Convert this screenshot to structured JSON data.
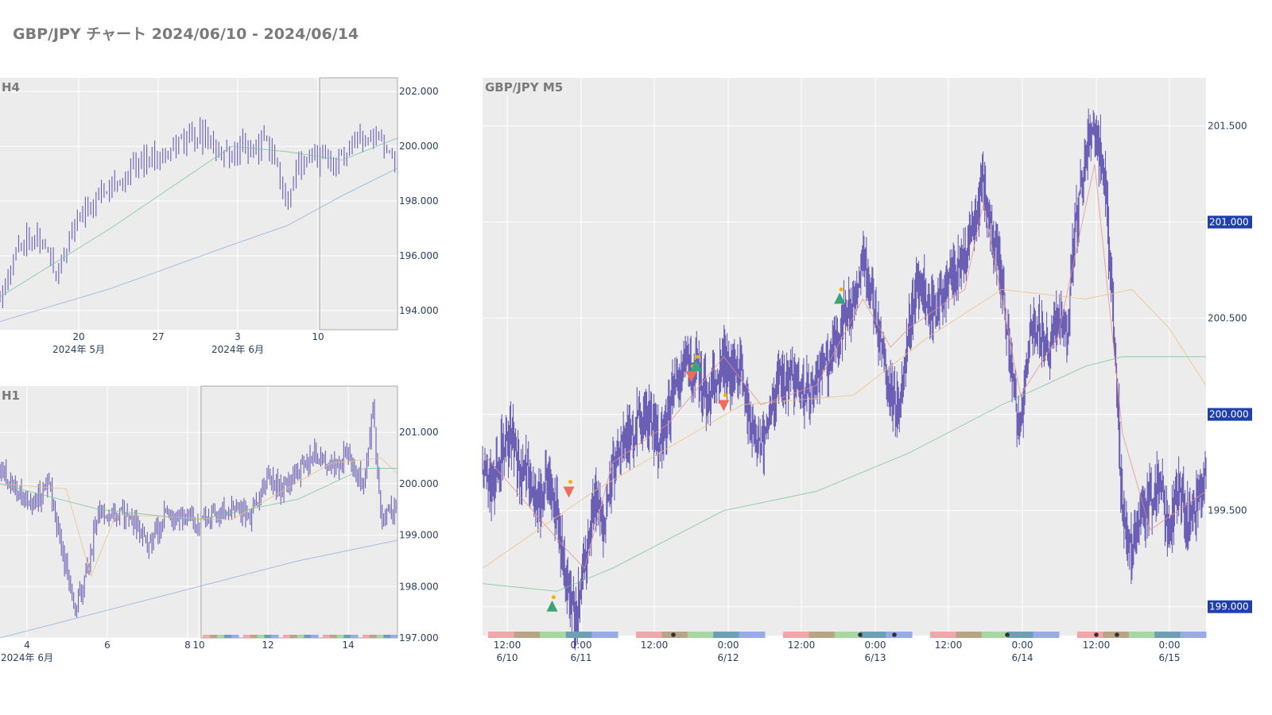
{
  "title": "GBP/JPY チャート 2024/06/10 - 2024/06/14",
  "colors": {
    "price": "#6a5fb5",
    "ma_short": "#e8908a",
    "ma_mid": "#f0c080",
    "ma_long": "#7cc49c",
    "ma_very_long": "#8fb0dc",
    "signal_up": "#3aa37a",
    "signal_down": "#ef6c5a",
    "signal_dot": "#f5b300",
    "price_badge": "#1f3fae",
    "session_bands": [
      "#f2a6aa",
      "#b8a487",
      "#a7d7a3",
      "#6f9fb5",
      "#97abe6"
    ]
  },
  "chart_data": [
    {
      "panel": "H4",
      "type": "candlestick",
      "label": "H4",
      "y_ticks": [
        "202.000",
        "200.000",
        "198.000",
        "196.000",
        "194.000"
      ],
      "ylim": [
        193.3,
        202.5
      ],
      "x_ticks": [
        {
          "label": "20",
          "sub": "2024年 5月"
        },
        {
          "label": "27",
          "sub": ""
        },
        {
          "label": "3",
          "sub": "2024年 6月"
        },
        {
          "label": "10",
          "sub": ""
        }
      ],
      "price_path": [
        [
          "05-10",
          194.6
        ],
        [
          "05-11",
          195.6
        ],
        [
          "05-12",
          196.6
        ],
        [
          "05-13",
          196.9
        ],
        [
          "05-14",
          196.3
        ],
        [
          "05-15",
          195.4
        ],
        [
          "05-16",
          196.4
        ],
        [
          "05-17",
          197.2
        ],
        [
          "05-18",
          197.8
        ],
        [
          "05-19",
          198.2
        ],
        [
          "05-20",
          198.8
        ],
        [
          "05-21",
          198.6
        ],
        [
          "05-22",
          199.3
        ],
        [
          "05-23",
          199.5
        ],
        [
          "05-24",
          199.7
        ],
        [
          "05-25",
          199.9
        ],
        [
          "05-26",
          200.1
        ],
        [
          "05-27",
          200.3
        ],
        [
          "05-28",
          200.5
        ],
        [
          "05-29",
          200.2
        ],
        [
          "05-30",
          199.6
        ],
        [
          "05-31",
          199.8
        ],
        [
          "06-01",
          200.1
        ],
        [
          "06-02",
          199.8
        ],
        [
          "06-03",
          200.3
        ],
        [
          "06-04",
          199.4
        ],
        [
          "06-05",
          197.8
        ],
        [
          "06-06",
          199.3
        ],
        [
          "06-07",
          199.7
        ],
        [
          "06-08",
          199.5
        ],
        [
          "06-09",
          199.3
        ],
        [
          "06-10",
          199.6
        ],
        [
          "06-11",
          200.1
        ],
        [
          "06-12",
          200.3
        ],
        [
          "06-13",
          200.7
        ],
        [
          "06-14",
          199.9
        ],
        [
          "06-15",
          199.5
        ]
      ],
      "ma_mid": [
        [
          "05-10",
          194.5
        ],
        [
          "05-20",
          197.0
        ],
        [
          "05-31",
          200.0
        ],
        [
          "06-05",
          199.8
        ],
        [
          "06-10",
          199.5
        ],
        [
          "06-15",
          200.3
        ]
      ],
      "ma_long": [
        [
          "05-10",
          193.6
        ],
        [
          "05-20",
          194.8
        ],
        [
          "05-31",
          196.4
        ],
        [
          "06-05",
          197.1
        ],
        [
          "06-10",
          198.2
        ],
        [
          "06-15",
          199.2
        ]
      ]
    },
    {
      "panel": "H1",
      "type": "candlestick",
      "label": "H1",
      "y_ticks": [
        "201.000",
        "200.000",
        "199.000",
        "198.000",
        "197.000"
      ],
      "ylim": [
        197.0,
        201.9
      ],
      "x_ticks": [
        {
          "label": "4",
          "sub": "2024年 6月"
        },
        {
          "label": "6",
          "sub": ""
        },
        {
          "label": "8",
          "sub": ""
        },
        {
          "label": "10",
          "sub": ""
        },
        {
          "label": "12",
          "sub": ""
        },
        {
          "label": "14",
          "sub": ""
        }
      ],
      "price_path": [
        [
          "06-03 00",
          200.3
        ],
        [
          "06-03 12",
          199.9
        ],
        [
          "06-04 00",
          199.6
        ],
        [
          "06-04 12",
          200.0
        ],
        [
          "06-05 00",
          198.3
        ],
        [
          "06-05 06",
          197.6
        ],
        [
          "06-05 12",
          197.9
        ],
        [
          "06-05 18",
          198.7
        ],
        [
          "06-06 00",
          199.5
        ],
        [
          "06-06 12",
          199.4
        ],
        [
          "06-07 00",
          199.3
        ],
        [
          "06-07 12",
          198.8
        ],
        [
          "06-08 00",
          199.4
        ],
        [
          "06-09 00",
          199.3
        ],
        [
          "06-10 00",
          199.5
        ],
        [
          "06-10 12",
          199.3
        ],
        [
          "06-11 00",
          200.1
        ],
        [
          "06-11 12",
          199.9
        ],
        [
          "06-12 00",
          200.2
        ],
        [
          "06-12 12",
          200.6
        ],
        [
          "06-13 00",
          200.3
        ],
        [
          "06-13 12",
          200.6
        ],
        [
          "06-14 00",
          199.9
        ],
        [
          "06-14 06",
          201.5
        ],
        [
          "06-14 12",
          199.2
        ],
        [
          "06-14 18",
          199.5
        ],
        [
          "06-15 00",
          199.6
        ]
      ],
      "ma_mid": [
        [
          "06-03 00",
          200.0
        ],
        [
          "06-05 00",
          199.9
        ],
        [
          "06-05 18",
          198.2
        ],
        [
          "06-06 12",
          199.4
        ],
        [
          "06-10 00",
          199.3
        ],
        [
          "06-13 00",
          200.4
        ],
        [
          "06-14 12",
          200.5
        ],
        [
          "06-15 00",
          200.2
        ]
      ],
      "ma_long": [
        [
          "06-03 00",
          200.0
        ],
        [
          "06-06 00",
          199.5
        ],
        [
          "06-09 00",
          199.3
        ],
        [
          "06-12 00",
          199.7
        ],
        [
          "06-14 00",
          200.3
        ],
        [
          "06-15 00",
          200.3
        ]
      ],
      "ma_very_long": [
        [
          "06-03 00",
          197.0
        ],
        [
          "06-06 00",
          197.5
        ],
        [
          "06-09 00",
          198.0
        ],
        [
          "06-12 00",
          198.5
        ],
        [
          "06-15 00",
          198.9
        ]
      ]
    },
    {
      "panel": "M5",
      "type": "candlestick",
      "label": "GBP/JPY M5",
      "y_ticks": [
        "201.500",
        "201.000",
        "200.500",
        "200.000",
        "199.500",
        "199.000"
      ],
      "price_markers": [
        "201.000",
        "200.000",
        "199.000"
      ],
      "ylim": [
        198.85,
        201.75
      ],
      "x_ticks": [
        {
          "label": "12:00",
          "sub": "6/10"
        },
        {
          "label": "0:00",
          "sub": "6/11"
        },
        {
          "label": "12:00",
          "sub": ""
        },
        {
          "label": "0:00",
          "sub": "6/12"
        },
        {
          "label": "12:00",
          "sub": ""
        },
        {
          "label": "0:00",
          "sub": "6/13"
        },
        {
          "label": "12:00",
          "sub": ""
        },
        {
          "label": "0:00",
          "sub": "6/14"
        },
        {
          "label": "12:00",
          "sub": ""
        },
        {
          "label": "0:00",
          "sub": "6/15"
        }
      ],
      "price_path": [
        [
          0,
          199.75
        ],
        [
          1,
          199.6
        ],
        [
          2,
          199.8
        ],
        [
          3,
          199.9
        ],
        [
          4,
          199.7
        ],
        [
          5,
          199.7
        ],
        [
          6,
          199.5
        ],
        [
          7,
          199.7
        ],
        [
          8,
          199.5
        ],
        [
          9,
          199.1
        ],
        [
          10,
          198.95
        ],
        [
          11,
          199.2
        ],
        [
          12,
          199.55
        ],
        [
          13,
          199.4
        ],
        [
          14,
          199.7
        ],
        [
          15,
          199.85
        ],
        [
          16,
          199.9
        ],
        [
          17,
          200.0
        ],
        [
          18,
          199.95
        ],
        [
          19,
          199.85
        ],
        [
          20,
          200.0
        ],
        [
          21,
          200.2
        ],
        [
          22,
          200.3
        ],
        [
          23,
          200.25
        ],
        [
          24,
          200.1
        ],
        [
          25,
          200.15
        ],
        [
          26,
          200.3
        ],
        [
          27,
          200.2
        ],
        [
          28,
          200.2
        ],
        [
          29,
          199.9
        ],
        [
          30,
          199.8
        ],
        [
          31,
          200.05
        ],
        [
          32,
          200.2
        ],
        [
          33,
          200.15
        ],
        [
          34,
          200.2
        ],
        [
          35,
          200.1
        ],
        [
          36,
          200.15
        ],
        [
          37,
          200.25
        ],
        [
          38,
          200.35
        ],
        [
          39,
          200.5
        ],
        [
          40,
          200.6
        ],
        [
          41,
          200.8
        ],
        [
          42,
          200.6
        ],
        [
          43,
          200.35
        ],
        [
          44,
          200.1
        ],
        [
          45,
          200.0
        ],
        [
          46,
          200.45
        ],
        [
          47,
          200.7
        ],
        [
          48,
          200.55
        ],
        [
          49,
          200.5
        ],
        [
          50,
          200.7
        ],
        [
          51,
          200.75
        ],
        [
          52,
          200.8
        ],
        [
          53,
          201.0
        ],
        [
          54,
          201.2
        ],
        [
          55,
          200.9
        ],
        [
          56,
          200.7
        ],
        [
          57,
          200.25
        ],
        [
          58,
          199.9
        ],
        [
          59,
          200.4
        ],
        [
          60,
          200.45
        ],
        [
          61,
          200.3
        ],
        [
          62,
          200.5
        ],
        [
          63,
          200.45
        ],
        [
          64,
          201.0
        ],
        [
          65,
          201.35
        ],
        [
          66,
          201.5
        ],
        [
          67,
          201.25
        ],
        [
          68,
          200.5
        ],
        [
          69,
          199.5
        ],
        [
          70,
          199.3
        ],
        [
          71,
          199.5
        ],
        [
          72,
          199.55
        ],
        [
          73,
          199.65
        ],
        [
          74,
          199.4
        ],
        [
          75,
          199.6
        ],
        [
          76,
          199.45
        ],
        [
          77,
          199.55
        ],
        [
          78,
          199.7
        ]
      ],
      "ma_short": [
        [
          0,
          199.8
        ],
        [
          9,
          199.3
        ],
        [
          11,
          199.2
        ],
        [
          14,
          199.75
        ],
        [
          20,
          199.95
        ],
        [
          26,
          200.3
        ],
        [
          30,
          200.05
        ],
        [
          36,
          200.15
        ],
        [
          41,
          200.6
        ],
        [
          44,
          200.35
        ],
        [
          46,
          200.45
        ],
        [
          52,
          200.65
        ],
        [
          54,
          201.1
        ],
        [
          58,
          200.1
        ],
        [
          62,
          200.4
        ],
        [
          66,
          201.3
        ],
        [
          69,
          199.9
        ],
        [
          72,
          199.4
        ],
        [
          78,
          199.6
        ]
      ],
      "ma_mid": [
        [
          0,
          199.2
        ],
        [
          12,
          199.6
        ],
        [
          28,
          200.05
        ],
        [
          40,
          200.1
        ],
        [
          48,
          200.4
        ],
        [
          56,
          200.65
        ],
        [
          65,
          200.6
        ],
        [
          70,
          200.65
        ],
        [
          74,
          200.45
        ],
        [
          78,
          200.15
        ]
      ],
      "ma_long": [
        [
          0,
          199.12
        ],
        [
          8,
          199.08
        ],
        [
          14,
          199.2
        ],
        [
          26,
          199.5
        ],
        [
          36,
          199.6
        ],
        [
          46,
          199.8
        ],
        [
          56,
          200.05
        ],
        [
          65,
          200.25
        ],
        [
          69,
          200.3
        ],
        [
          78,
          200.3
        ]
      ],
      "signals": [
        {
          "t": 7.5,
          "price": 199.0,
          "dir": "up"
        },
        {
          "t": 9.3,
          "price": 199.6,
          "dir": "down"
        },
        {
          "t": 22.5,
          "price": 200.2,
          "dir": "down"
        },
        {
          "t": 23.0,
          "price": 200.25,
          "dir": "up"
        },
        {
          "t": 26.0,
          "price": 200.05,
          "dir": "down"
        },
        {
          "t": 38.5,
          "price": 200.6,
          "dir": "up"
        }
      ]
    }
  ]
}
